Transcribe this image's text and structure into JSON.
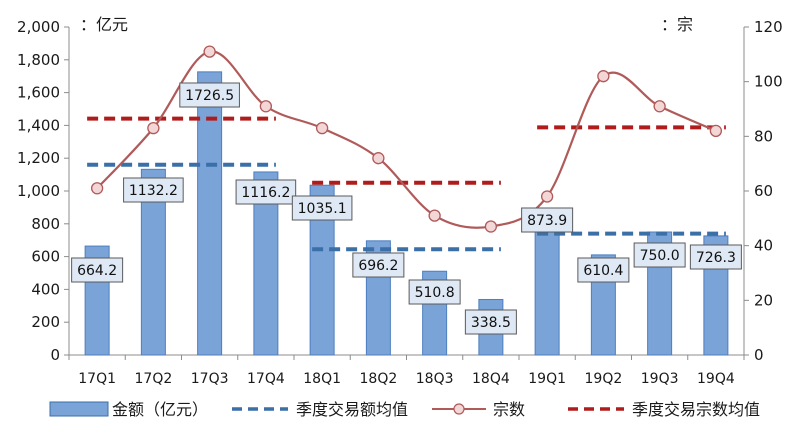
{
  "chart_data": {
    "type": "bar",
    "categories": [
      "17Q1",
      "17Q2",
      "17Q3",
      "17Q4",
      "18Q1",
      "18Q2",
      "18Q3",
      "18Q4",
      "19Q1",
      "19Q2",
      "19Q3",
      "19Q4"
    ],
    "left_unit": "：亿元",
    "right_unit": "：宗",
    "y_left": {
      "min": 0,
      "max": 2000,
      "ticks": [
        0,
        200,
        400,
        600,
        800,
        1000,
        1200,
        1400,
        1600,
        1800,
        2000
      ],
      "tick_labels": [
        "0",
        "200",
        "400",
        "600",
        "800",
        "1,000",
        "1,200",
        "1,400",
        "1,600",
        "1,800",
        "2,000"
      ]
    },
    "y_right": {
      "min": 0,
      "max": 120,
      "ticks": [
        0,
        20,
        40,
        60,
        80,
        100,
        120
      ],
      "tick_labels": [
        "0",
        "20",
        "40",
        "60",
        "80",
        "100",
        "120"
      ]
    },
    "series": [
      {
        "name": "金额（亿元）",
        "kind": "bar",
        "axis": "left",
        "color": "#7aa3d8",
        "values": [
          664.2,
          1132.2,
          1726.5,
          1116.2,
          1035.1,
          696.2,
          510.8,
          338.5,
          873.9,
          610.4,
          750.0,
          726.3
        ],
        "labels": [
          "664.2",
          "1132.2",
          "1726.5",
          "1116.2",
          "1035.1",
          "696.2",
          "510.8",
          "338.5",
          "873.9",
          "610.4",
          "750.0",
          "726.3"
        ]
      },
      {
        "name": "季度交易额均值",
        "kind": "dashed-segments",
        "axis": "left",
        "color": "#3a6fa8",
        "segments": [
          {
            "from": "17Q1",
            "to": "17Q4",
            "value": 1160
          },
          {
            "from": "18Q1",
            "to": "18Q4",
            "value": 645
          },
          {
            "from": "19Q1",
            "to": "19Q4",
            "value": 740
          }
        ]
      },
      {
        "name": "宗数",
        "kind": "smooth-line",
        "axis": "right",
        "color": "#b05a5a",
        "marker_fill": "#f3d6d6",
        "values": [
          61,
          83,
          111,
          91,
          83,
          72,
          51,
          47,
          58,
          102,
          91,
          82
        ]
      },
      {
        "name": "季度交易宗数均值",
        "kind": "dashed-segments",
        "axis": "right",
        "color": "#b01c1c",
        "segments": [
          {
            "from": "17Q1",
            "to": "17Q4",
            "value": 86.5
          },
          {
            "from": "18Q1",
            "to": "18Q4",
            "value": 63
          },
          {
            "from": "19Q1",
            "to": "19Q4",
            "value": 83.3
          }
        ]
      }
    ],
    "legend_position": "bottom",
    "grid": false
  }
}
